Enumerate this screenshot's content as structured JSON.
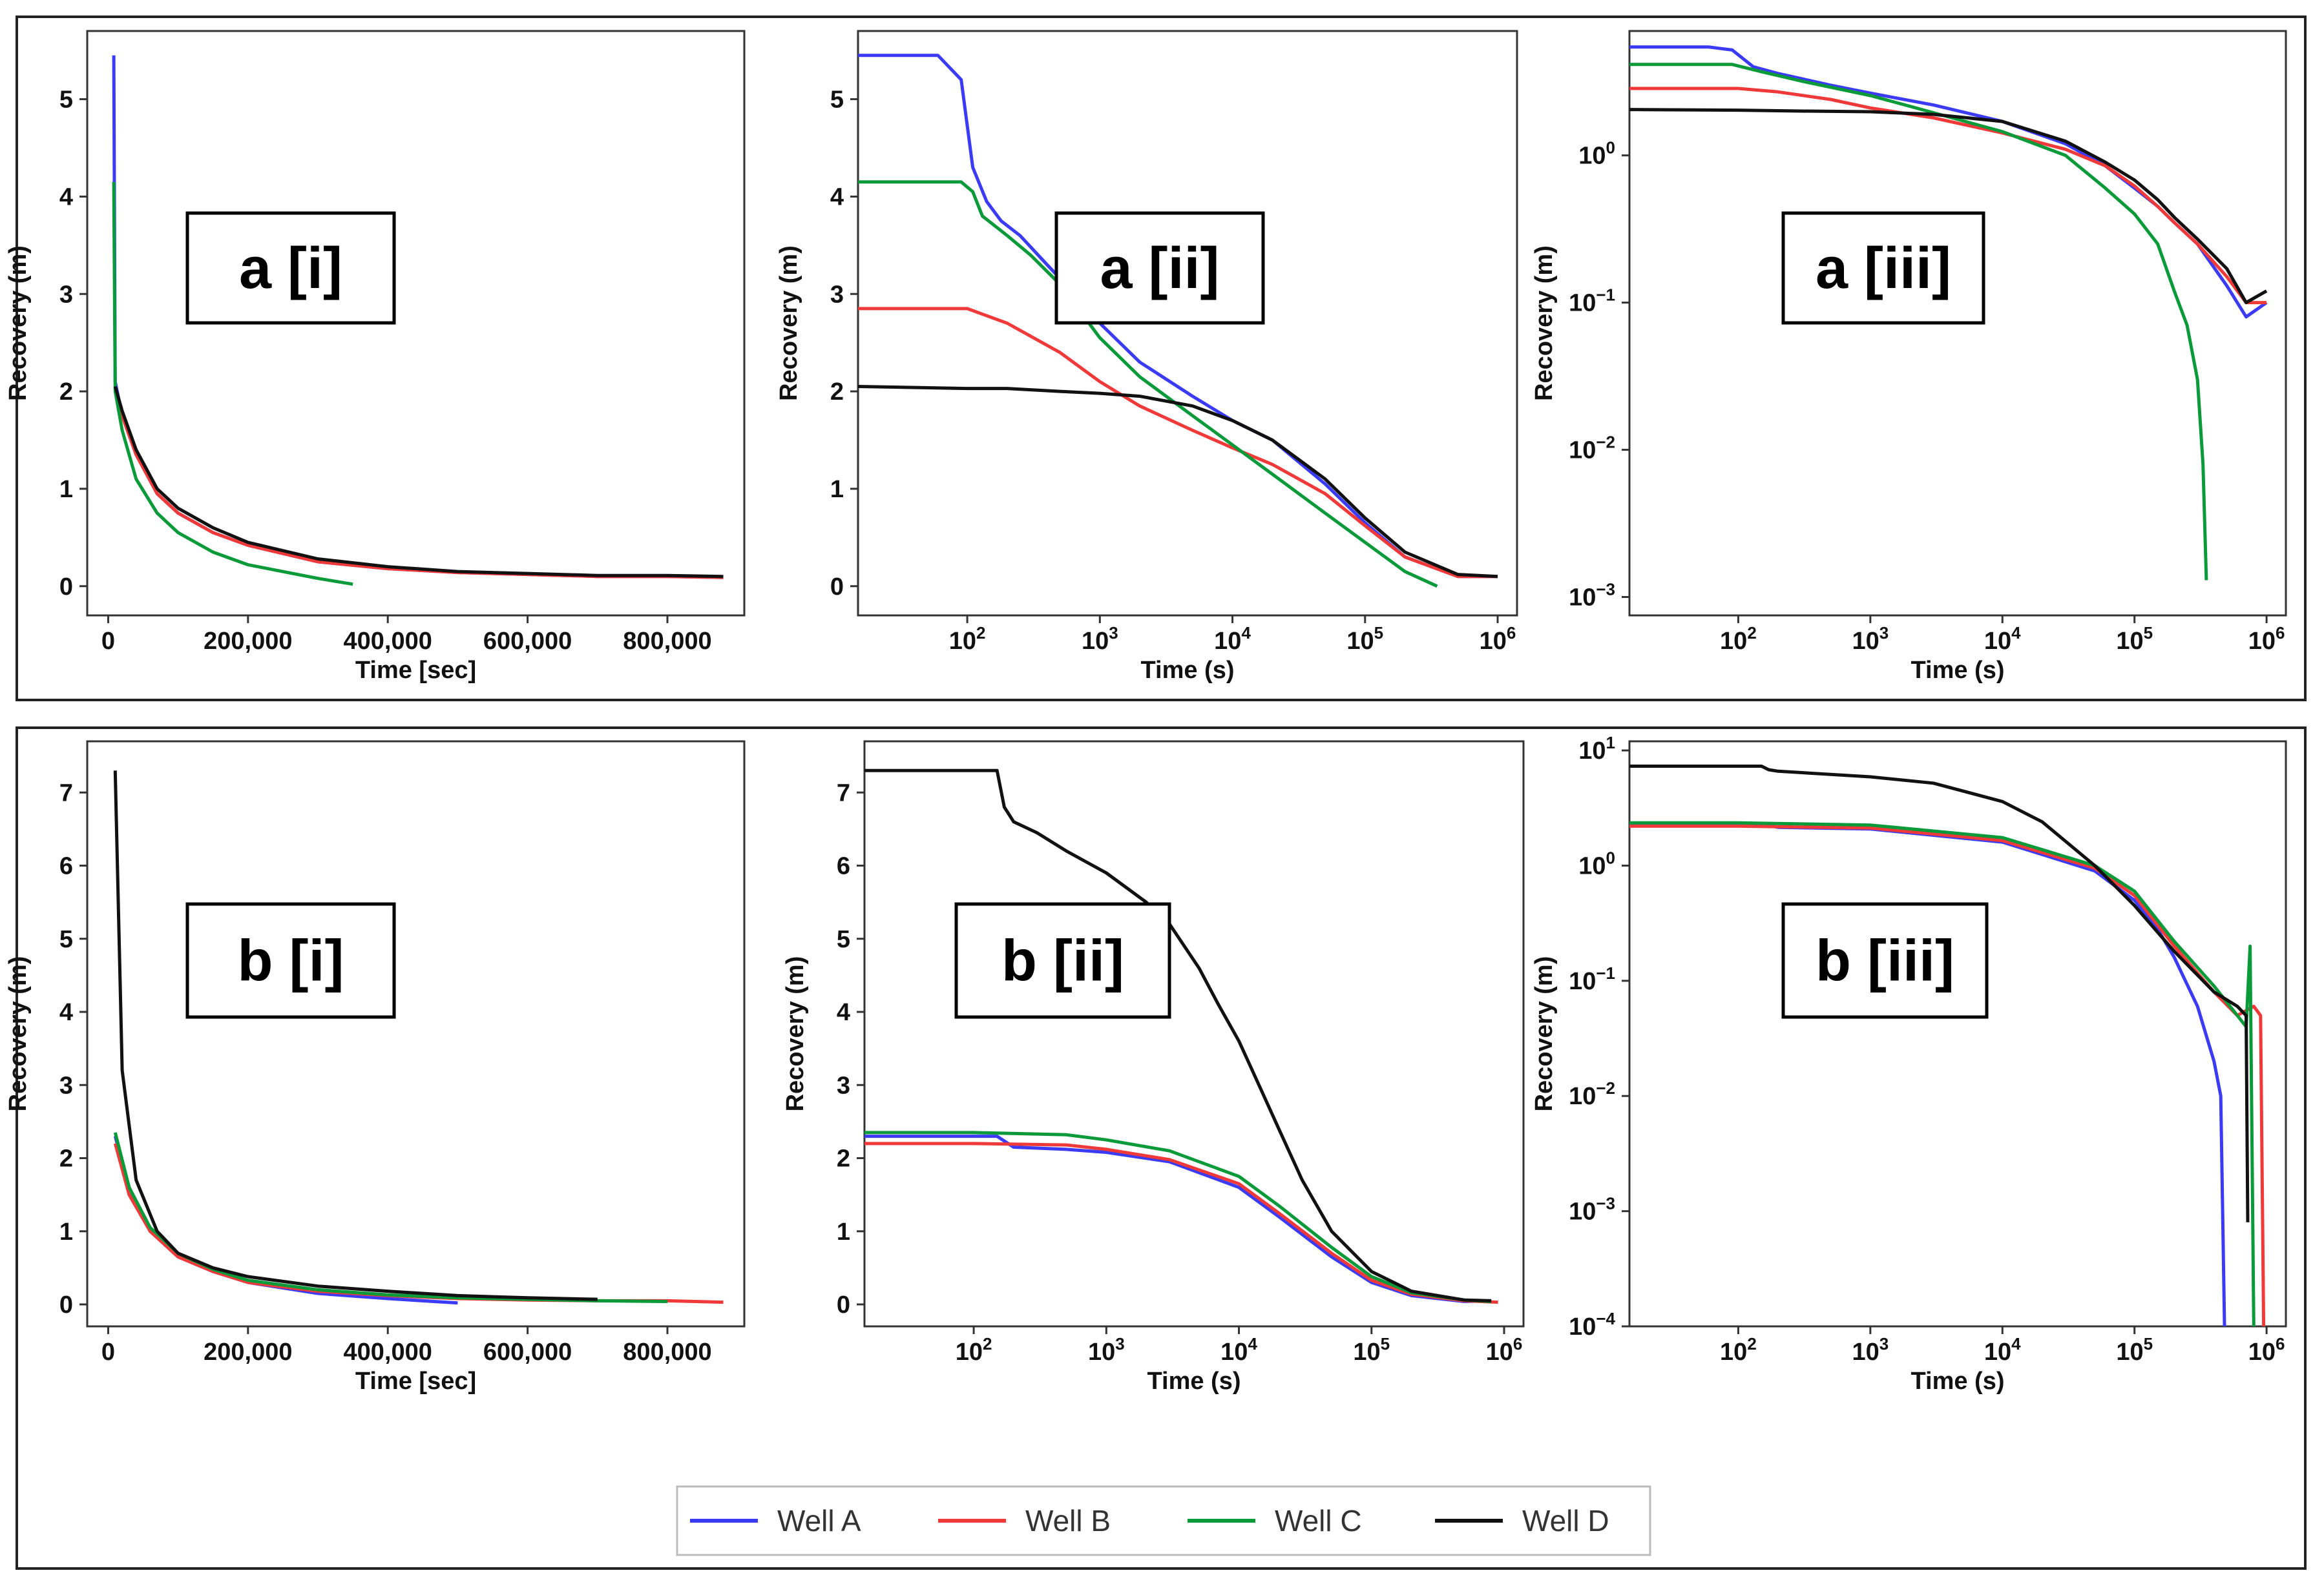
{
  "legend": [
    {
      "name": "Well A",
      "color": "#3b3bf5"
    },
    {
      "name": "Well B",
      "color": "#f03a3a"
    },
    {
      "name": "Well C",
      "color": "#0a9a3a"
    },
    {
      "name": "Well D",
      "color": "#111111"
    }
  ],
  "chart_data": [
    {
      "id": "a-i",
      "label": "a [i]",
      "type": "line",
      "xscale": "linear",
      "yscale": "linear",
      "xlabel": "Time [sec]",
      "ylabel": "Recovery (m)",
      "xlim": [
        -30000,
        910000
      ],
      "ylim": [
        -0.3,
        5.7
      ],
      "xticks": [
        0,
        200000,
        400000,
        600000,
        800000
      ],
      "xticklabels": [
        "0",
        "200,000",
        "400,000",
        "600,000",
        "800,000"
      ],
      "yticks": [
        0,
        1,
        2,
        3,
        4,
        5
      ],
      "yticklabels": [
        "0",
        "1",
        "2",
        "3",
        "4",
        "5"
      ],
      "series": [
        {
          "name": "Well A",
          "x": [
            8000,
            10000,
            20000,
            40000,
            70000,
            100000,
            150000,
            200000,
            300000,
            400000,
            500000,
            600000,
            700000,
            800000,
            880000
          ],
          "y": [
            5.45,
            2.1,
            1.75,
            1.35,
            0.95,
            0.75,
            0.55,
            0.42,
            0.25,
            0.18,
            0.14,
            0.12,
            0.1,
            0.1,
            0.09
          ]
        },
        {
          "name": "Well B",
          "x": [
            10000,
            20000,
            40000,
            70000,
            100000,
            150000,
            200000,
            300000,
            400000,
            500000,
            600000,
            700000,
            800000,
            880000
          ],
          "y": [
            2.05,
            1.75,
            1.35,
            0.95,
            0.75,
            0.55,
            0.42,
            0.25,
            0.18,
            0.14,
            0.12,
            0.1,
            0.1,
            0.09
          ]
        },
        {
          "name": "Well C",
          "x": [
            8000,
            10000,
            20000,
            40000,
            70000,
            100000,
            150000,
            200000,
            300000,
            350000
          ],
          "y": [
            4.15,
            2.0,
            1.6,
            1.1,
            0.75,
            0.55,
            0.35,
            0.22,
            0.08,
            0.02
          ]
        },
        {
          "name": "Well D",
          "x": [
            10000,
            20000,
            40000,
            70000,
            100000,
            150000,
            200000,
            300000,
            400000,
            500000,
            600000,
            700000,
            800000,
            880000
          ],
          "y": [
            2.05,
            1.8,
            1.4,
            1.0,
            0.8,
            0.6,
            0.45,
            0.28,
            0.2,
            0.15,
            0.13,
            0.11,
            0.11,
            0.1
          ]
        }
      ]
    },
    {
      "id": "a-ii",
      "label": "a [ii]",
      "type": "line",
      "xscale": "log",
      "yscale": "linear",
      "xlabel": "Time (s)",
      "ylabel": "Recovery (m)",
      "xlim": [
        15,
        1400000
      ],
      "ylim": [
        -0.3,
        5.7
      ],
      "xticks": [
        100,
        1000,
        10000,
        100000,
        1000000
      ],
      "xticklabels": [
        "10^2",
        "10^3",
        "10^4",
        "10^5",
        "10^6"
      ],
      "yticks": [
        0,
        1,
        2,
        3,
        4,
        5
      ],
      "yticklabels": [
        "0",
        "1",
        "2",
        "3",
        "4",
        "5"
      ],
      "series": [
        {
          "name": "Well A",
          "x": [
            15,
            60,
            90,
            110,
            140,
            180,
            250,
            400,
            700,
            1000,
            2000,
            5000,
            10000,
            20000,
            50000,
            100000,
            200000,
            500000,
            1000000
          ],
          "y": [
            5.45,
            5.45,
            5.2,
            4.3,
            3.95,
            3.75,
            3.6,
            3.3,
            2.95,
            2.7,
            2.3,
            1.95,
            1.7,
            1.5,
            1.05,
            0.65,
            0.3,
            0.1,
            0.1
          ]
        },
        {
          "name": "Well B",
          "x": [
            15,
            100,
            200,
            500,
            1000,
            2000,
            5000,
            10000,
            20000,
            50000,
            100000,
            200000,
            500000,
            1000000
          ],
          "y": [
            2.85,
            2.85,
            2.7,
            2.4,
            2.1,
            1.85,
            1.6,
            1.42,
            1.25,
            0.95,
            0.62,
            0.3,
            0.1,
            0.1
          ]
        },
        {
          "name": "Well C",
          "x": [
            15,
            90,
            110,
            130,
            200,
            300,
            500,
            1000,
            2000,
            5000,
            10000,
            20000,
            50000,
            100000,
            200000,
            350000
          ],
          "y": [
            4.15,
            4.15,
            4.05,
            3.8,
            3.6,
            3.4,
            3.1,
            2.55,
            2.15,
            1.75,
            1.45,
            1.15,
            0.75,
            0.45,
            0.15,
            0.0
          ]
        },
        {
          "name": "Well D",
          "x": [
            15,
            100,
            200,
            500,
            1000,
            2000,
            5000,
            10000,
            20000,
            50000,
            100000,
            200000,
            500000,
            1000000
          ],
          "y": [
            2.05,
            2.03,
            2.03,
            2.0,
            1.98,
            1.95,
            1.85,
            1.7,
            1.5,
            1.1,
            0.7,
            0.35,
            0.12,
            0.1
          ]
        }
      ]
    },
    {
      "id": "a-iii",
      "label": "a [iii]",
      "type": "line",
      "xscale": "log",
      "yscale": "log",
      "xlabel": "Time (s)",
      "ylabel": "Recovery (m)",
      "xlim": [
        15,
        1400000
      ],
      "ylim": [
        0.00075,
        7
      ],
      "xticks": [
        100,
        1000,
        10000,
        100000,
        1000000
      ],
      "xticklabels": [
        "10^2",
        "10^3",
        "10^4",
        "10^5",
        "10^6"
      ],
      "yticks": [
        0.001,
        0.01,
        0.1,
        1
      ],
      "yticklabels": [
        "10^-3",
        "10^-2",
        "10^-1",
        "10^0"
      ],
      "series": [
        {
          "name": "Well A",
          "x": [
            15,
            60,
            90,
            130,
            200,
            500,
            1000,
            3000,
            10000,
            30000,
            60000,
            100000,
            150000,
            200000,
            300000,
            500000,
            700000,
            1000000
          ],
          "y": [
            5.45,
            5.45,
            5.2,
            4.0,
            3.6,
            3.0,
            2.65,
            2.2,
            1.7,
            1.2,
            0.85,
            0.6,
            0.45,
            0.35,
            0.25,
            0.13,
            0.08,
            0.1
          ]
        },
        {
          "name": "Well B",
          "x": [
            15,
            100,
            200,
            500,
            1000,
            3000,
            10000,
            30000,
            60000,
            100000,
            150000,
            200000,
            300000,
            500000,
            700000,
            1000000
          ],
          "y": [
            2.85,
            2.85,
            2.7,
            2.4,
            2.1,
            1.8,
            1.42,
            1.1,
            0.85,
            0.62,
            0.45,
            0.35,
            0.25,
            0.15,
            0.1,
            0.1
          ]
        },
        {
          "name": "Well C",
          "x": [
            15,
            90,
            150,
            300,
            1000,
            3000,
            10000,
            30000,
            60000,
            100000,
            150000,
            200000,
            250000,
            300000,
            330000,
            350000
          ],
          "y": [
            4.15,
            4.15,
            3.7,
            3.2,
            2.55,
            1.95,
            1.45,
            1.0,
            0.6,
            0.4,
            0.25,
            0.12,
            0.07,
            0.03,
            0.008,
            0.0013
          ]
        },
        {
          "name": "Well D",
          "x": [
            15,
            100,
            300,
            1000,
            3000,
            10000,
            30000,
            60000,
            100000,
            150000,
            200000,
            300000,
            500000,
            700000,
            1000000
          ],
          "y": [
            2.05,
            2.03,
            2.0,
            1.98,
            1.9,
            1.7,
            1.25,
            0.9,
            0.68,
            0.5,
            0.38,
            0.27,
            0.17,
            0.1,
            0.12
          ]
        }
      ]
    },
    {
      "id": "b-i",
      "label": "b [i]",
      "type": "line",
      "xscale": "linear",
      "yscale": "linear",
      "xlabel": "Time [sec]",
      "ylabel": "Recovery (m)",
      "xlim": [
        -30000,
        910000
      ],
      "ylim": [
        -0.3,
        7.7
      ],
      "xticks": [
        0,
        200000,
        400000,
        600000,
        800000
      ],
      "xticklabels": [
        "0",
        "200,000",
        "400,000",
        "600,000",
        "800,000"
      ],
      "yticks": [
        0,
        1,
        2,
        3,
        4,
        5,
        6,
        7
      ],
      "yticklabels": [
        "0",
        "1",
        "2",
        "3",
        "4",
        "5",
        "6",
        "7"
      ],
      "series": [
        {
          "name": "Well A",
          "x": [
            10000,
            30000,
            60000,
            100000,
            150000,
            200000,
            300000,
            400000,
            500000
          ],
          "y": [
            2.3,
            1.6,
            1.0,
            0.65,
            0.45,
            0.3,
            0.15,
            0.08,
            0.02
          ]
        },
        {
          "name": "Well B",
          "x": [
            10000,
            30000,
            60000,
            100000,
            150000,
            200000,
            300000,
            400000,
            500000,
            600000,
            700000,
            800000,
            880000
          ],
          "y": [
            2.2,
            1.5,
            1.0,
            0.65,
            0.45,
            0.3,
            0.18,
            0.12,
            0.08,
            0.06,
            0.05,
            0.05,
            0.03
          ]
        },
        {
          "name": "Well C",
          "x": [
            10000,
            30000,
            60000,
            100000,
            150000,
            200000,
            300000,
            400000,
            500000,
            600000,
            700000,
            800000
          ],
          "y": [
            2.35,
            1.6,
            1.05,
            0.7,
            0.48,
            0.33,
            0.2,
            0.13,
            0.09,
            0.07,
            0.05,
            0.04
          ]
        },
        {
          "name": "Well D",
          "x": [
            10000,
            20000,
            40000,
            70000,
            100000,
            150000,
            200000,
            300000,
            400000,
            500000,
            600000,
            700000
          ],
          "y": [
            7.3,
            3.2,
            1.7,
            1.0,
            0.7,
            0.5,
            0.38,
            0.25,
            0.18,
            0.12,
            0.09,
            0.07
          ]
        }
      ]
    },
    {
      "id": "b-ii",
      "label": "b [ii]",
      "type": "line",
      "xscale": "log",
      "yscale": "linear",
      "xlabel": "Time (s)",
      "ylabel": "Recovery (m)",
      "xlim": [
        15,
        1400000
      ],
      "ylim": [
        -0.3,
        7.7
      ],
      "xticks": [
        100,
        1000,
        10000,
        100000,
        1000000
      ],
      "xticklabels": [
        "10^2",
        "10^3",
        "10^4",
        "10^5",
        "10^6"
      ],
      "yticks": [
        0,
        1,
        2,
        3,
        4,
        5,
        6,
        7
      ],
      "yticklabels": [
        "0",
        "1",
        "2",
        "3",
        "4",
        "5",
        "6",
        "7"
      ],
      "series": [
        {
          "name": "Well A",
          "x": [
            15,
            100,
            150,
            200,
            500,
            1000,
            3000,
            10000,
            20000,
            50000,
            100000,
            200000,
            500000,
            800000
          ],
          "y": [
            2.3,
            2.3,
            2.3,
            2.15,
            2.12,
            2.08,
            1.95,
            1.6,
            1.2,
            0.65,
            0.3,
            0.12,
            0.04,
            0.05
          ]
        },
        {
          "name": "Well B",
          "x": [
            15,
            100,
            500,
            1000,
            3000,
            10000,
            20000,
            50000,
            100000,
            200000,
            500000,
            900000
          ],
          "y": [
            2.2,
            2.2,
            2.18,
            2.12,
            1.98,
            1.65,
            1.25,
            0.7,
            0.33,
            0.14,
            0.05,
            0.03
          ]
        },
        {
          "name": "Well C",
          "x": [
            15,
            100,
            500,
            1000,
            3000,
            10000,
            20000,
            50000,
            100000,
            200000,
            500000,
            800000
          ],
          "y": [
            2.35,
            2.35,
            2.32,
            2.25,
            2.1,
            1.75,
            1.35,
            0.78,
            0.38,
            0.16,
            0.06,
            0.04
          ]
        },
        {
          "name": "Well D",
          "x": [
            15,
            150,
            170,
            200,
            300,
            500,
            1000,
            2000,
            3000,
            5000,
            7000,
            10000,
            15000,
            20000,
            30000,
            50000,
            100000,
            200000,
            500000,
            800000
          ],
          "y": [
            7.3,
            7.3,
            6.8,
            6.6,
            6.45,
            6.2,
            5.9,
            5.5,
            5.2,
            4.6,
            4.1,
            3.6,
            2.9,
            2.4,
            1.7,
            1.0,
            0.45,
            0.18,
            0.06,
            0.05
          ]
        }
      ]
    },
    {
      "id": "b-iii",
      "label": "b [iii]",
      "type": "line",
      "xscale": "log",
      "yscale": "log",
      "xlabel": "Time (s)",
      "ylabel": "Recovery (m)",
      "xlim": [
        15,
        1400000
      ],
      "ylim": [
        0.0001,
        12
      ],
      "xticks": [
        100,
        1000,
        10000,
        100000,
        1000000
      ],
      "xticklabels": [
        "10^2",
        "10^3",
        "10^4",
        "10^5",
        "10^6"
      ],
      "yticks": [
        0.0001,
        0.001,
        0.01,
        0.1,
        1,
        10
      ],
      "yticklabels": [
        "10^-4",
        "10^-3",
        "10^-2",
        "10^-1",
        "10^0",
        "10^1"
      ],
      "series": [
        {
          "name": "Well A",
          "x": [
            15,
            100,
            150,
            200,
            1000,
            10000,
            50000,
            100000,
            150000,
            200000,
            300000,
            400000,
            450000,
            480000
          ],
          "y": [
            2.3,
            2.3,
            2.3,
            2.15,
            2.08,
            1.6,
            0.9,
            0.5,
            0.28,
            0.16,
            0.06,
            0.02,
            0.01,
            0.0001
          ]
        },
        {
          "name": "Well B",
          "x": [
            15,
            100,
            1000,
            10000,
            50000,
            100000,
            200000,
            400000,
            600000,
            800000,
            900000,
            950000
          ],
          "y": [
            2.2,
            2.2,
            2.12,
            1.65,
            0.95,
            0.55,
            0.2,
            0.08,
            0.05,
            0.06,
            0.05,
            0.0001
          ]
        },
        {
          "name": "Well C",
          "x": [
            15,
            100,
            1000,
            10000,
            50000,
            100000,
            200000,
            400000,
            600000,
            700000,
            750000,
            800000
          ],
          "y": [
            2.35,
            2.35,
            2.25,
            1.75,
            1.0,
            0.6,
            0.22,
            0.09,
            0.05,
            0.04,
            0.2,
            0.0001
          ]
        },
        {
          "name": "Well D",
          "x": [
            15,
            150,
            170,
            200,
            1000,
            3000,
            10000,
            20000,
            50000,
            100000,
            200000,
            400000,
            600000,
            700000,
            720000
          ],
          "y": [
            7.3,
            7.3,
            6.8,
            6.6,
            5.9,
            5.2,
            3.6,
            2.4,
            1.0,
            0.45,
            0.18,
            0.08,
            0.06,
            0.05,
            0.0008
          ]
        }
      ]
    }
  ]
}
